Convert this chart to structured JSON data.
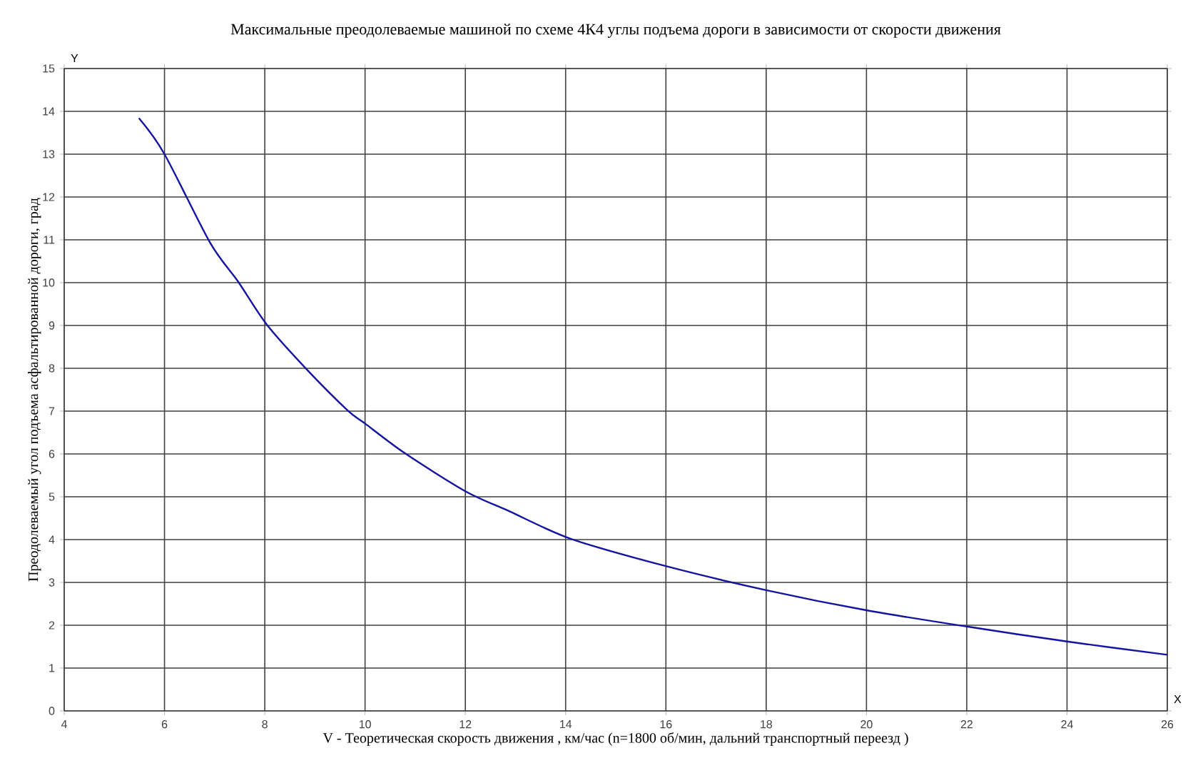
{
  "chart_data": {
    "type": "line",
    "title": "Максимальные преодолеваемые   машиной   по схеме 4К4 углы подъема дороги  в зависимости от скорости движения",
    "xlabel": "V - Теоретическая скорость движения , км/час   (n=1800 об/мин,  дальний транспортный переезд )",
    "ylabel": "Преодолеваемый угол подъема асфальтированной дороги, град",
    "annotations": [
      "Y",
      "X"
    ],
    "x": [
      5.49,
      6,
      6.91,
      7.47,
      8.04,
      8.8,
      9.65,
      10,
      10.79,
      12,
      12.88,
      14.1,
      16,
      18,
      20,
      22,
      24,
      26
    ],
    "series": [
      {
        "color": "#1414a0",
        "values": [
          13.84,
          13,
          10.93,
          10.02,
          9.02,
          8.02,
          7.02,
          6.71,
          6.02,
          5.13,
          4.66,
          4.02,
          3.38,
          2.82,
          2.35,
          1.97,
          1.62,
          1.31
        ]
      }
    ],
    "xlim": [
      4,
      26
    ],
    "ylim": [
      0,
      15
    ],
    "xticks": [
      4,
      6,
      8,
      10,
      12,
      14,
      16,
      18,
      20,
      22,
      24,
      26
    ],
    "yticks": [
      0,
      1,
      2,
      3,
      4,
      5,
      6,
      7,
      8,
      9,
      10,
      11,
      12,
      13,
      14,
      15
    ],
    "grid": true
  }
}
